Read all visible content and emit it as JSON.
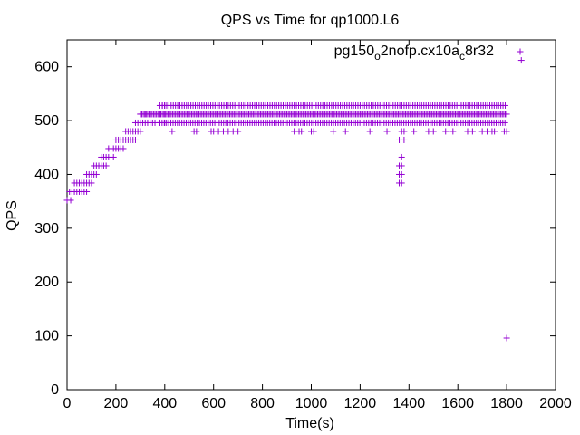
{
  "chart_data": {
    "type": "scatter",
    "title": "QPS vs Time for qp1000.L6",
    "xlabel": "Time(s)",
    "ylabel": "QPS",
    "xlim": [
      0,
      2000
    ],
    "ylim": [
      0,
      650
    ],
    "xticks": [
      0,
      200,
      400,
      600,
      800,
      1000,
      1200,
      1400,
      1600,
      1800,
      2000
    ],
    "yticks": [
      0,
      100,
      200,
      300,
      400,
      500,
      600
    ],
    "grid": false,
    "legend_position": "top-right",
    "marker": "plus",
    "series": [
      {
        "name_parts": [
          "pg150",
          "o",
          "2nofp.cx10a",
          "c",
          "8r32"
        ],
        "color": "#9400d3",
        "points": [
          [
            0,
            352
          ],
          [
            10,
            368
          ],
          [
            15,
            352
          ],
          [
            20,
            368
          ],
          [
            30,
            368
          ],
          [
            40,
            368
          ],
          [
            50,
            368
          ],
          [
            60,
            368
          ],
          [
            70,
            368
          ],
          [
            80,
            368
          ],
          [
            30,
            384
          ],
          [
            40,
            384
          ],
          [
            50,
            384
          ],
          [
            60,
            384
          ],
          [
            70,
            384
          ],
          [
            80,
            384
          ],
          [
            90,
            384
          ],
          [
            100,
            384
          ],
          [
            80,
            400
          ],
          [
            90,
            400
          ],
          [
            100,
            400
          ],
          [
            110,
            400
          ],
          [
            120,
            400
          ],
          [
            110,
            416
          ],
          [
            120,
            416
          ],
          [
            130,
            416
          ],
          [
            140,
            416
          ],
          [
            150,
            416
          ],
          [
            160,
            416
          ],
          [
            140,
            432
          ],
          [
            150,
            432
          ],
          [
            160,
            432
          ],
          [
            170,
            432
          ],
          [
            180,
            432
          ],
          [
            190,
            432
          ],
          [
            170,
            448
          ],
          [
            180,
            448
          ],
          [
            190,
            448
          ],
          [
            200,
            448
          ],
          [
            210,
            448
          ],
          [
            220,
            448
          ],
          [
            230,
            448
          ],
          [
            200,
            464
          ],
          [
            210,
            464
          ],
          [
            220,
            464
          ],
          [
            230,
            464
          ],
          [
            240,
            464
          ],
          [
            250,
            464
          ],
          [
            260,
            464
          ],
          [
            270,
            464
          ],
          [
            280,
            464
          ],
          [
            240,
            480
          ],
          [
            250,
            480
          ],
          [
            260,
            480
          ],
          [
            270,
            480
          ],
          [
            280,
            480
          ],
          [
            290,
            480
          ],
          [
            300,
            480
          ],
          [
            280,
            496
          ],
          [
            290,
            496
          ],
          [
            300,
            496
          ],
          [
            310,
            496
          ],
          [
            320,
            496
          ],
          [
            330,
            496
          ],
          [
            340,
            496
          ],
          [
            350,
            496
          ],
          [
            360,
            496
          ],
          [
            380,
            496
          ],
          [
            400,
            496
          ],
          [
            300,
            512
          ],
          [
            320,
            512
          ],
          [
            340,
            512
          ],
          [
            360,
            512
          ],
          [
            380,
            512
          ],
          [
            400,
            512
          ],
          [
            380,
            528
          ],
          [
            390,
            528
          ],
          [
            400,
            528
          ],
          [
            430,
            480
          ],
          [
            520,
            480
          ],
          [
            530,
            480
          ],
          [
            590,
            480
          ],
          [
            600,
            480
          ],
          [
            620,
            480
          ],
          [
            640,
            480
          ],
          [
            660,
            480
          ],
          [
            680,
            480
          ],
          [
            700,
            480
          ],
          [
            930,
            480
          ],
          [
            950,
            480
          ],
          [
            960,
            480
          ],
          [
            1000,
            480
          ],
          [
            1010,
            480
          ],
          [
            1090,
            480
          ],
          [
            1140,
            480
          ],
          [
            1240,
            480
          ],
          [
            1310,
            480
          ],
          [
            1370,
            480
          ],
          [
            1380,
            480
          ],
          [
            1420,
            480
          ],
          [
            1480,
            480
          ],
          [
            1500,
            480
          ],
          [
            1550,
            480
          ],
          [
            1580,
            480
          ],
          [
            1640,
            480
          ],
          [
            1660,
            480
          ],
          [
            1700,
            480
          ],
          [
            1720,
            480
          ],
          [
            1740,
            480
          ],
          [
            1750,
            480
          ],
          [
            1790,
            480
          ],
          [
            1800,
            480
          ],
          [
            1360,
            464
          ],
          [
            1380,
            464
          ],
          [
            1370,
            432
          ],
          [
            1370,
            416
          ],
          [
            1360,
            416
          ],
          [
            1360,
            400
          ],
          [
            1370,
            400
          ],
          [
            1360,
            384
          ],
          [
            1370,
            384
          ],
          [
            1800,
            96
          ],
          [
            1860,
            612
          ]
        ],
        "bands": [
          {
            "y": 512,
            "x_start": 300,
            "x_end": 1800,
            "step": 6
          },
          {
            "y": 496,
            "x_start": 380,
            "x_end": 1800,
            "step": 9
          },
          {
            "y": 528,
            "x_start": 390,
            "x_end": 1800,
            "step": 9
          }
        ]
      }
    ]
  }
}
